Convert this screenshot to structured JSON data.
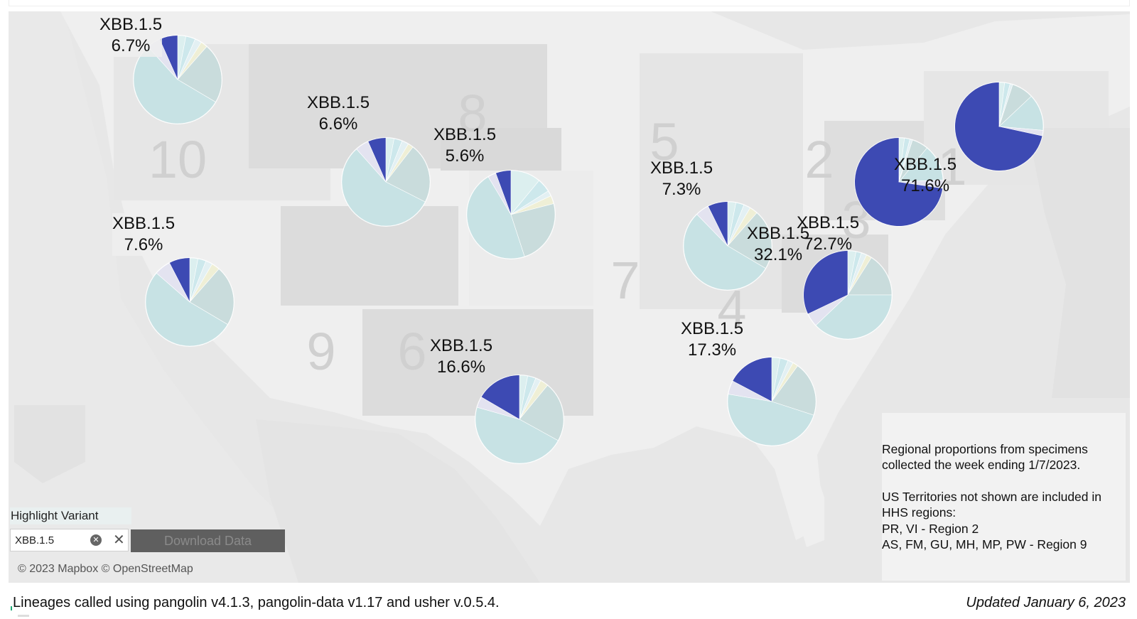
{
  "map": {
    "colors": {
      "background": "#e7e7e7",
      "state_light": "#ededed",
      "region_dark": "#dcdcdc",
      "land_neutral": "#e4e4e4",
      "highlight": "#3d4ab3",
      "region_number": "#d0d0d0"
    },
    "region_numbers": [
      "10",
      "8",
      "5",
      "2",
      "1",
      "9",
      "6",
      "7",
      "4",
      "3"
    ],
    "regions": [
      {
        "id": "10",
        "variant": "XBB.1.5",
        "percent": "6.7%",
        "share": 0.067,
        "others": [
          [
            "#dcefef",
            0.03
          ],
          [
            "#cde8ec",
            0.035
          ],
          [
            "#e3f0f3",
            0.025
          ],
          [
            "#efefd6",
            0.025
          ],
          [
            "#c9dcdc",
            0.22
          ],
          [
            "#c7e2e4",
            0.548
          ],
          [
            "#e3e3f0",
            0.05
          ]
        ]
      },
      {
        "id": "8",
        "variant": "XBB.1.5",
        "percent": "6.6%",
        "share": 0.066,
        "others": [
          [
            "#dcefef",
            0.03
          ],
          [
            "#cde8ec",
            0.03
          ],
          [
            "#e3f0f3",
            0.025
          ],
          [
            "#efefd6",
            0.02
          ],
          [
            "#c9dcdc",
            0.22
          ],
          [
            "#c7e2e4",
            0.559
          ],
          [
            "#e3e3f0",
            0.05
          ]
        ]
      },
      {
        "id": "8b",
        "variant": "XBB.1.5",
        "percent": "5.6%",
        "share": 0.056,
        "others": [
          [
            "#dcefef",
            0.11
          ],
          [
            "#cde8ec",
            0.05
          ],
          [
            "#e3f0f3",
            0.02
          ],
          [
            "#efefd6",
            0.03
          ],
          [
            "#c9dcdc",
            0.24
          ],
          [
            "#c7e2e4",
            0.464
          ],
          [
            "#e3e3f0",
            0.03
          ]
        ]
      },
      {
        "id": "9",
        "variant": "XBB.1.5",
        "percent": "7.6%",
        "share": 0.076,
        "others": [
          [
            "#dcefef",
            0.03
          ],
          [
            "#cde8ec",
            0.03
          ],
          [
            "#e3f0f3",
            0.025
          ],
          [
            "#efefd6",
            0.03
          ],
          [
            "#c9dcdc",
            0.22
          ],
          [
            "#c7e2e4",
            0.529
          ],
          [
            "#e3e3f0",
            0.06
          ]
        ]
      },
      {
        "id": "6",
        "variant": "XBB.1.5",
        "percent": "16.6%",
        "share": 0.166,
        "others": [
          [
            "#dcefef",
            0.03
          ],
          [
            "#cde8ec",
            0.03
          ],
          [
            "#e3f0f3",
            0.02
          ],
          [
            "#efefd6",
            0.03
          ],
          [
            "#c9dcdc",
            0.22
          ],
          [
            "#c7e2e4",
            0.464
          ],
          [
            "#e3e3f0",
            0.04
          ]
        ]
      },
      {
        "id": "5",
        "variant": "XBB.1.5",
        "percent": "7.3%",
        "share": 0.073,
        "others": [
          [
            "#dcefef",
            0.03
          ],
          [
            "#cde8ec",
            0.03
          ],
          [
            "#e3f0f3",
            0.025
          ],
          [
            "#efefd6",
            0.03
          ],
          [
            "#c9dcdc",
            0.22
          ],
          [
            "#c7e2e4",
            0.542
          ],
          [
            "#e3e3f0",
            0.05
          ]
        ]
      },
      {
        "id": "4",
        "variant": "XBB.1.5",
        "percent": "17.3%",
        "share": 0.173,
        "others": [
          [
            "#dcefef",
            0.03
          ],
          [
            "#cde8ec",
            0.03
          ],
          [
            "#e3f0f3",
            0.02
          ],
          [
            "#efefd6",
            0.02
          ],
          [
            "#c9dcdc",
            0.2
          ],
          [
            "#c7e2e4",
            0.477
          ],
          [
            "#e3e3f0",
            0.05
          ]
        ]
      },
      {
        "id": "3",
        "variant": "XBB.1.5",
        "percent": "32.1%",
        "share": 0.321,
        "others": [
          [
            "#dcefef",
            0.03
          ],
          [
            "#cde8ec",
            0.02
          ],
          [
            "#e3f0f3",
            0.02
          ],
          [
            "#efefd6",
            0.02
          ],
          [
            "#c9dcdc",
            0.16
          ],
          [
            "#c7e2e4",
            0.379
          ],
          [
            "#e3e3f0",
            0.05
          ]
        ]
      },
      {
        "id": "2",
        "variant": "XBB.1.5",
        "percent": "72.7%",
        "share": 0.727,
        "others": [
          [
            "#dcefef",
            0.02
          ],
          [
            "#cde8ec",
            0.02
          ],
          [
            "#e3f0f3",
            0.01
          ],
          [
            "#c9dcdc",
            0.06
          ],
          [
            "#c7e2e4",
            0.133
          ],
          [
            "#e3e3f0",
            0.03
          ]
        ]
      },
      {
        "id": "1",
        "variant": "XBB.1.5",
        "percent": "71.6%",
        "share": 0.716,
        "others": [
          [
            "#dcefef",
            0.02
          ],
          [
            "#cde8ec",
            0.02
          ],
          [
            "#e3f0f3",
            0.01
          ],
          [
            "#c9dcdc",
            0.08
          ],
          [
            "#c7e2e4",
            0.134
          ],
          [
            "#e3e3f0",
            0.02
          ]
        ]
      }
    ]
  },
  "controls": {
    "highlight_label": "Highlight Variant",
    "highlight_value": "XBB.1.5",
    "download_label": "Download Data",
    "clear_icon": "clear-circle-icon",
    "close_icon": "close-icon"
  },
  "attribution": "© 2023 Mapbox  © OpenStreetMap",
  "info": {
    "line1": "Regional proportions from specimens",
    "line2": "collected the week ending 1/7/2023.",
    "line3": "US Territories not shown are included in",
    "line4": "HHS regions:",
    "line5": "PR, VI - Region 2",
    "line6": "AS, FM, GU, MH, MP, PW - Region 9"
  },
  "footer": {
    "left": "Lineages called using pangolin v4.1.3, pangolin-data v1.17 and usher v.0.5.4.",
    "right": "Updated January 6, 2023"
  }
}
